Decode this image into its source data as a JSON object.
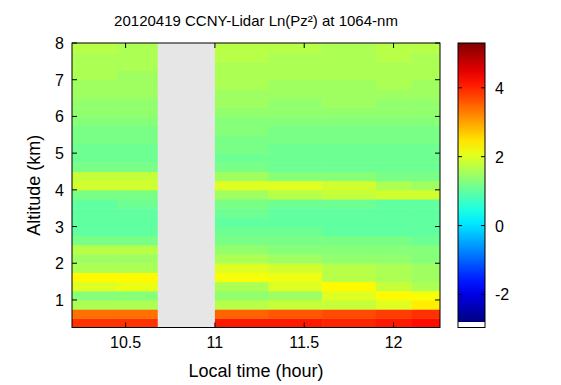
{
  "chart_data": {
    "type": "heatmap",
    "title": "20120419 CCNY-Lidar Ln(Pz²) at 1064-nm",
    "x_label": "Local time (hour)",
    "y_label": "Altitude (km)",
    "xlim": [
      10.2,
      12.26
    ],
    "xticks": [
      10.5,
      11,
      11.5,
      12
    ],
    "ylim": [
      0.25,
      8
    ],
    "yticks": [
      1,
      2,
      3,
      4,
      5,
      6,
      7,
      8
    ],
    "x_edges": [
      10.2,
      10.45,
      10.68,
      11.0,
      11.3,
      11.6,
      11.9,
      12.1,
      12.26
    ],
    "y_edges": [
      0.25,
      0.5,
      0.75,
      1.0,
      1.25,
      1.5,
      1.75,
      2.0,
      2.25,
      2.5,
      2.75,
      3.0,
      3.25,
      3.5,
      3.75,
      4.0,
      4.25,
      4.5,
      4.75,
      5.0,
      5.25,
      5.5,
      5.75,
      6.0,
      6.25,
      6.5,
      6.75,
      7.0,
      7.25,
      7.5,
      7.75,
      8.0
    ],
    "values": [
      [
        3.9,
        3.9,
        null,
        4.1,
        4.1,
        4.0,
        4.1,
        4.2
      ],
      [
        3.4,
        3.4,
        null,
        3.5,
        3.6,
        3.7,
        3.8,
        3.9
      ],
      [
        1.6,
        1.6,
        null,
        1.7,
        1.8,
        1.8,
        2.0,
        2.4
      ],
      [
        1.3,
        1.3,
        null,
        1.4,
        1.5,
        2.0,
        2.3,
        2.2
      ],
      [
        2.0,
        2.1,
        null,
        1.6,
        2.0,
        2.3,
        1.8,
        1.6
      ],
      [
        2.3,
        2.3,
        null,
        2.2,
        2.1,
        1.7,
        1.6,
        1.5
      ],
      [
        1.6,
        1.6,
        null,
        2.0,
        1.9,
        1.7,
        1.6,
        1.5
      ],
      [
        1.5,
        1.5,
        null,
        1.6,
        1.5,
        1.4,
        1.4,
        1.3
      ],
      [
        1.7,
        1.7,
        null,
        1.4,
        1.3,
        1.3,
        1.3,
        1.3
      ],
      [
        1.2,
        1.2,
        null,
        1.2,
        1.2,
        1.2,
        1.2,
        1.1
      ],
      [
        1.0,
        1.0,
        null,
        1.1,
        1.1,
        1.0,
        1.0,
        1.0
      ],
      [
        1.0,
        1.0,
        null,
        1.0,
        1.0,
        1.0,
        1.0,
        1.0
      ],
      [
        1.0,
        1.0,
        null,
        1.1,
        1.0,
        1.0,
        1.0,
        1.0
      ],
      [
        1.0,
        1.1,
        null,
        1.2,
        1.1,
        1.1,
        1.0,
        1.0
      ],
      [
        1.2,
        1.2,
        null,
        1.5,
        1.7,
        1.8,
        1.9,
        1.9
      ],
      [
        1.9,
        1.9,
        null,
        2.0,
        2.0,
        1.9,
        1.6,
        1.5
      ],
      [
        1.8,
        1.8,
        null,
        1.5,
        1.3,
        1.3,
        1.2,
        1.2
      ],
      [
        1.2,
        1.2,
        null,
        1.2,
        1.1,
        1.1,
        1.1,
        1.1
      ],
      [
        1.1,
        1.1,
        null,
        1.1,
        1.1,
        1.1,
        1.1,
        1.1
      ],
      [
        1.1,
        1.1,
        null,
        1.2,
        1.1,
        1.1,
        1.1,
        1.1
      ],
      [
        1.2,
        1.2,
        null,
        1.2,
        1.2,
        1.2,
        1.2,
        1.2
      ],
      [
        1.2,
        1.2,
        null,
        1.3,
        1.2,
        1.2,
        1.2,
        1.2
      ],
      [
        1.3,
        1.3,
        null,
        1.3,
        1.3,
        1.3,
        1.3,
        1.3
      ],
      [
        1.4,
        1.4,
        null,
        1.4,
        1.4,
        1.4,
        1.4,
        1.4
      ],
      [
        1.4,
        1.4,
        null,
        1.5,
        1.4,
        1.5,
        1.4,
        1.4
      ],
      [
        1.5,
        1.5,
        null,
        1.5,
        1.5,
        1.5,
        1.5,
        1.5
      ],
      [
        1.5,
        1.5,
        null,
        1.6,
        1.5,
        1.5,
        1.6,
        1.5
      ],
      [
        1.6,
        1.5,
        null,
        1.6,
        1.6,
        1.6,
        1.6,
        1.6
      ],
      [
        1.6,
        1.6,
        null,
        1.6,
        1.6,
        1.6,
        1.6,
        1.6
      ],
      [
        1.6,
        1.6,
        null,
        1.7,
        1.6,
        1.6,
        1.7,
        1.6
      ],
      [
        1.7,
        1.6,
        null,
        1.7,
        1.7,
        1.6,
        1.7,
        1.7
      ]
    ],
    "colorbar_range": [
      -2.8,
      5.3
    ],
    "colorbar_ticks": [
      -2,
      0,
      2,
      4
    ]
  }
}
